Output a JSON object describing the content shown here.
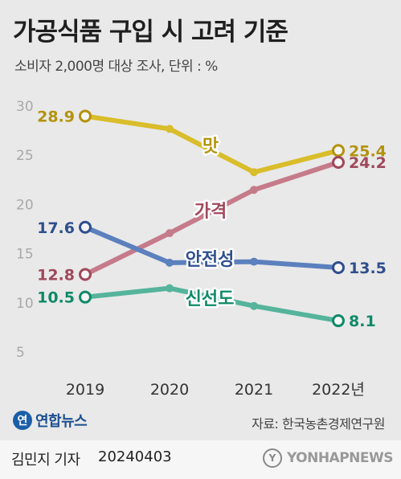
{
  "header": {
    "title": "가공식품 구입 시 고려 기준",
    "subtitle": "소비자 2,000명 대상 조사, 단위 : %"
  },
  "chart_data": {
    "type": "line",
    "categories": [
      "2019",
      "2020",
      "2021",
      "2022년"
    ],
    "ylim": [
      5,
      30
    ],
    "yticks": [
      5,
      10,
      15,
      20,
      25,
      30
    ],
    "grid": false,
    "legend": "inline labels on lines",
    "series": [
      {
        "name": "맛",
        "color": "#d9bd2a",
        "label_color": "#b3930d",
        "values": [
          28.9,
          27.6,
          23.2,
          25.4
        ],
        "start_label": "28.9",
        "end_label": "25.4"
      },
      {
        "name": "가격",
        "color": "#c67b8a",
        "label_color": "#a0485b",
        "values": [
          12.8,
          17.0,
          21.4,
          24.2
        ],
        "start_label": "12.8",
        "end_label": "24.2"
      },
      {
        "name": "안전성",
        "color": "#5b80be",
        "label_color": "#2f4f8e",
        "values": [
          17.6,
          14.0,
          14.1,
          13.5
        ],
        "start_label": "17.6",
        "end_label": "13.5"
      },
      {
        "name": "신선도",
        "color": "#55b49b",
        "label_color": "#0f8a68",
        "values": [
          10.5,
          11.4,
          9.6,
          8.1
        ],
        "start_label": "10.5",
        "end_label": "8.1"
      }
    ]
  },
  "footer": {
    "logo_mark": "연",
    "logo_text": "연합뉴스",
    "source": "자료: 한국농촌경제연구원",
    "reporter": "김민지 기자",
    "date": "20240403",
    "watermark_mark": "Y",
    "watermark_text": "YONHAPNEWS"
  }
}
